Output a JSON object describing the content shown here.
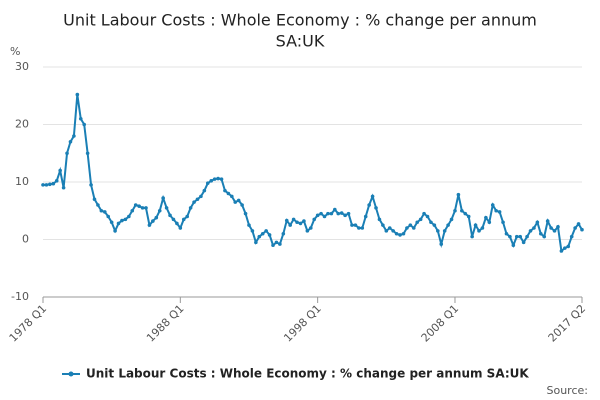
{
  "chart_data": {
    "type": "line",
    "title": [
      "Unit Labour Costs : Whole Economy : % change per annum",
      "SA:UK"
    ],
    "y_label": "%",
    "source": "Source:",
    "categories": [
      "1978 Q1",
      null,
      null,
      null,
      null,
      null,
      null,
      null,
      null,
      null,
      null,
      null,
      null,
      null,
      null,
      null,
      null,
      null,
      null,
      null,
      null,
      null,
      null,
      null,
      null,
      null,
      null,
      null,
      null,
      null,
      null,
      null,
      null,
      null,
      null,
      null,
      null,
      null,
      null,
      null,
      "1988 Q1",
      null,
      null,
      null,
      null,
      null,
      null,
      null,
      null,
      null,
      null,
      null,
      null,
      null,
      null,
      null,
      null,
      null,
      null,
      null,
      null,
      null,
      null,
      null,
      null,
      null,
      null,
      null,
      null,
      null,
      null,
      null,
      null,
      null,
      null,
      null,
      null,
      null,
      null,
      null,
      "1998 Q1",
      null,
      null,
      null,
      null,
      null,
      null,
      null,
      null,
      null,
      null,
      null,
      null,
      null,
      null,
      null,
      null,
      null,
      null,
      null,
      null,
      null,
      null,
      null,
      null,
      null,
      null,
      null,
      null,
      null,
      null,
      null,
      null,
      null,
      null,
      null,
      null,
      null,
      null,
      null,
      "2008 Q1",
      null,
      null,
      null,
      null,
      null,
      null,
      null,
      null,
      null,
      null,
      null,
      null,
      null,
      null,
      null,
      null,
      null,
      null,
      null,
      null,
      null,
      null,
      null,
      null,
      null,
      null,
      null,
      null,
      null,
      null,
      null,
      null,
      null,
      null,
      null,
      null,
      "2017 Q2"
    ],
    "series": [
      {
        "name": "Unit Labour Costs : Whole Economy : % change per annum SA:UK",
        "color": "#1a7fb5",
        "values": [
          9.5,
          9.5,
          9.6,
          9.7,
          10.2,
          12.0,
          9.0,
          15.0,
          17.0,
          18.0,
          25.2,
          21.0,
          20.0,
          15.0,
          9.5,
          7.0,
          6.0,
          5.0,
          4.8,
          4.0,
          3.0,
          1.5,
          2.8,
          3.3,
          3.5,
          4.0,
          5.0,
          6.0,
          5.8,
          5.5,
          5.5,
          2.5,
          3.2,
          3.8,
          5.0,
          7.2,
          5.5,
          4.2,
          3.5,
          2.8,
          2.0,
          3.5,
          4.0,
          5.5,
          6.5,
          7.0,
          7.5,
          8.5,
          9.8,
          10.2,
          10.5,
          10.6,
          10.5,
          8.5,
          8.0,
          7.5,
          6.5,
          6.8,
          6.0,
          4.5,
          2.5,
          1.5,
          -0.5,
          0.5,
          1.0,
          1.5,
          0.8,
          -1.0,
          -0.5,
          -0.8,
          1.0,
          3.3,
          2.5,
          3.5,
          3.0,
          2.8,
          3.2,
          1.5,
          2.0,
          3.5,
          4.2,
          4.5,
          4.0,
          4.5,
          4.5,
          5.2,
          4.5,
          4.6,
          4.2,
          4.5,
          2.5,
          2.5,
          2.0,
          2.0,
          4.0,
          6.0,
          7.5,
          5.5,
          3.5,
          2.5,
          1.5,
          2.0,
          1.5,
          1.0,
          0.8,
          1.0,
          2.0,
          2.5,
          2.0,
          3.0,
          3.5,
          4.5,
          4.0,
          3.0,
          2.5,
          1.5,
          -0.8,
          1.5,
          2.5,
          3.5,
          5.0,
          7.8,
          5.0,
          4.5,
          4.0,
          0.5,
          2.5,
          1.5,
          2.0,
          3.8,
          3.0,
          6.0,
          5.0,
          4.8,
          3.0,
          1.0,
          0.5,
          -1.0,
          0.5,
          0.5,
          -0.5,
          0.5,
          1.5,
          2.0,
          3.0,
          1.0,
          0.5,
          3.2,
          2.0,
          1.5,
          2.2,
          -2.0,
          -1.5,
          -1.2,
          0.5,
          2.0,
          2.7,
          1.7
        ]
      }
    ],
    "ylim": [
      -10,
      30
    ],
    "yticks": [
      -10,
      0,
      10,
      20,
      30
    ],
    "grid": true,
    "legend": "bottom"
  }
}
